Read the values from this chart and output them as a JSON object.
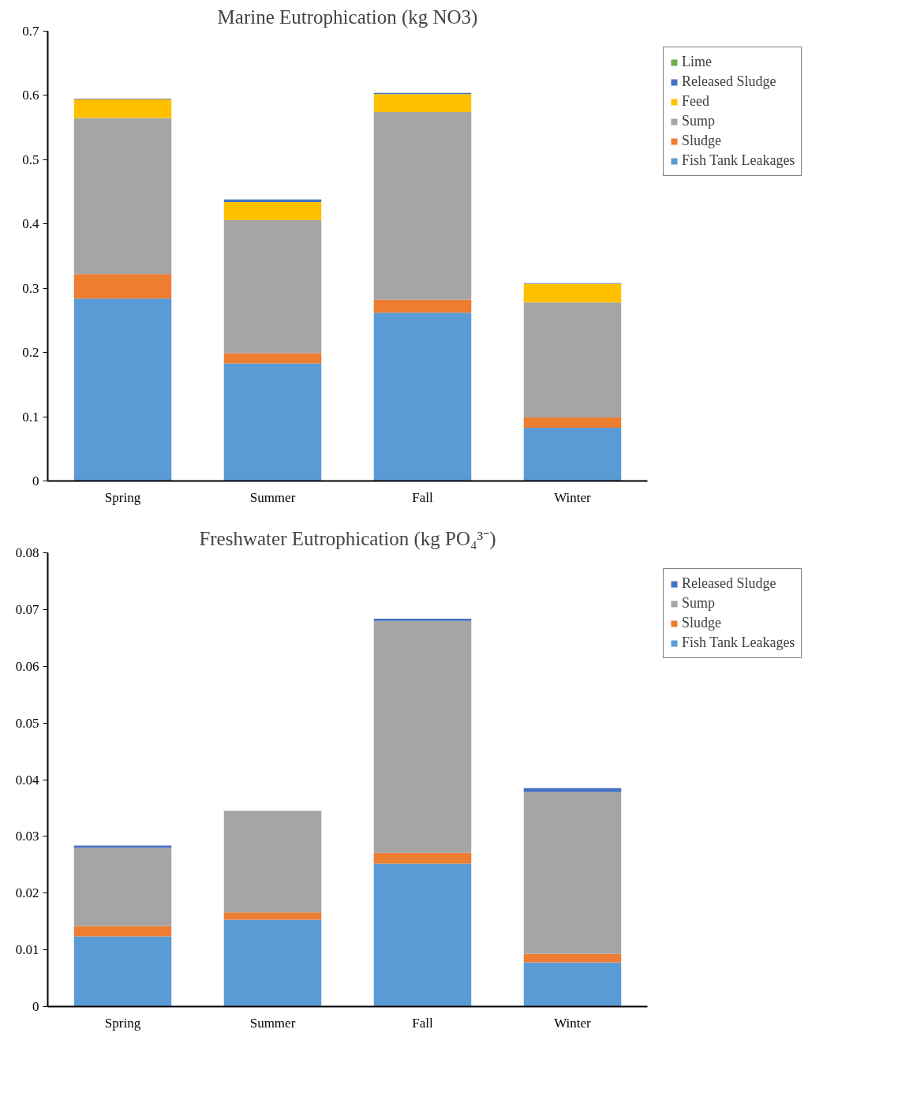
{
  "chart_data": [
    {
      "type": "bar",
      "stacked": true,
      "title": "Marine Eutrophication (kg NO3)",
      "categories": [
        "Spring",
        "Summer",
        "Fall",
        "Winter"
      ],
      "ylim": [
        0,
        0.7
      ],
      "yticks": [
        0,
        0.1,
        0.2,
        0.3,
        0.4,
        0.5,
        0.6,
        0.7
      ],
      "legend": "right",
      "grid": false,
      "series": [
        {
          "name": "Fish Tank Leakages",
          "color": "#5b9bd5",
          "values": [
            0.284,
            0.183,
            0.262,
            0.083
          ]
        },
        {
          "name": "Sludge",
          "color": "#ed7d31",
          "values": [
            0.038,
            0.016,
            0.02,
            0.016
          ]
        },
        {
          "name": "Sump",
          "color": "#a5a5a5",
          "values": [
            0.243,
            0.207,
            0.292,
            0.179
          ]
        },
        {
          "name": "Feed",
          "color": "#ffc000",
          "values": [
            0.029,
            0.028,
            0.028,
            0.029
          ]
        },
        {
          "name": "Released Sludge",
          "color": "#4472c4",
          "values": [
            0.001,
            0.004,
            0.002,
            0.001
          ]
        },
        {
          "name": "Lime",
          "color": "#70ad47",
          "values": [
            0,
            0,
            0,
            0
          ]
        }
      ]
    },
    {
      "type": "bar",
      "stacked": true,
      "title": "Freshwater Eutrophication (kg PO₄³⁻)",
      "categories": [
        "Spring",
        "Summer",
        "Fall",
        "Winter"
      ],
      "ylim": [
        0,
        0.08
      ],
      "yticks": [
        0,
        0.01,
        0.02,
        0.03,
        0.04,
        0.05,
        0.06,
        0.07,
        0.08
      ],
      "legend": "right",
      "grid": false,
      "series": [
        {
          "name": "Fish Tank Leakages",
          "color": "#5b9bd5",
          "values": [
            0.0124,
            0.0153,
            0.0252,
            0.0078
          ]
        },
        {
          "name": "Sludge",
          "color": "#ed7d31",
          "values": [
            0.0018,
            0.0013,
            0.0019,
            0.0015
          ]
        },
        {
          "name": "Sump",
          "color": "#a5a5a5",
          "values": [
            0.0138,
            0.0179,
            0.0409,
            0.0285
          ]
        },
        {
          "name": "Released Sludge",
          "color": "#4472c4",
          "values": [
            0.0004,
            0,
            0.0004,
            0.0007
          ]
        }
      ]
    }
  ]
}
